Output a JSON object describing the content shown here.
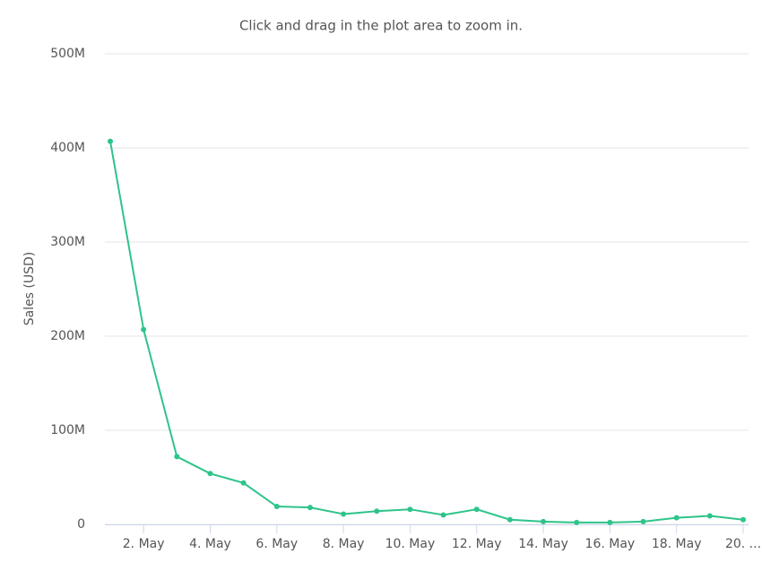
{
  "chart_data": {
    "type": "line",
    "subtitle": "Click and drag in the plot area to zoom in.",
    "y_label": "Sales (USD)",
    "categories": [
      null,
      "2. May",
      null,
      "4. May",
      null,
      "6. May",
      null,
      "8. May",
      null,
      "10. May",
      null,
      "12. May",
      null,
      "14. May",
      null,
      "16. May",
      null,
      "18. May",
      null,
      "20. ..."
    ],
    "series": [
      {
        "name": "Sales",
        "color": "#2ec48a",
        "values": [
          407000000,
          207000000,
          72000000,
          54000000,
          44000000,
          19000000,
          18000000,
          11000000,
          14000000,
          16000000,
          10000000,
          16000000,
          5000000,
          3000000,
          2000000,
          2000000,
          3000000,
          7000000,
          9000000,
          5000000
        ]
      }
    ],
    "ylim": [
      0,
      500000000
    ],
    "yticks": [
      0,
      {
        "value": 100000000,
        "label": "100M"
      },
      {
        "value": 200000000,
        "label": "200M"
      },
      {
        "value": 300000000,
        "label": "300M"
      },
      {
        "value": 400000000,
        "label": "400M"
      },
      {
        "value": 500000000,
        "label": "500M"
      }
    ],
    "grid": true
  }
}
